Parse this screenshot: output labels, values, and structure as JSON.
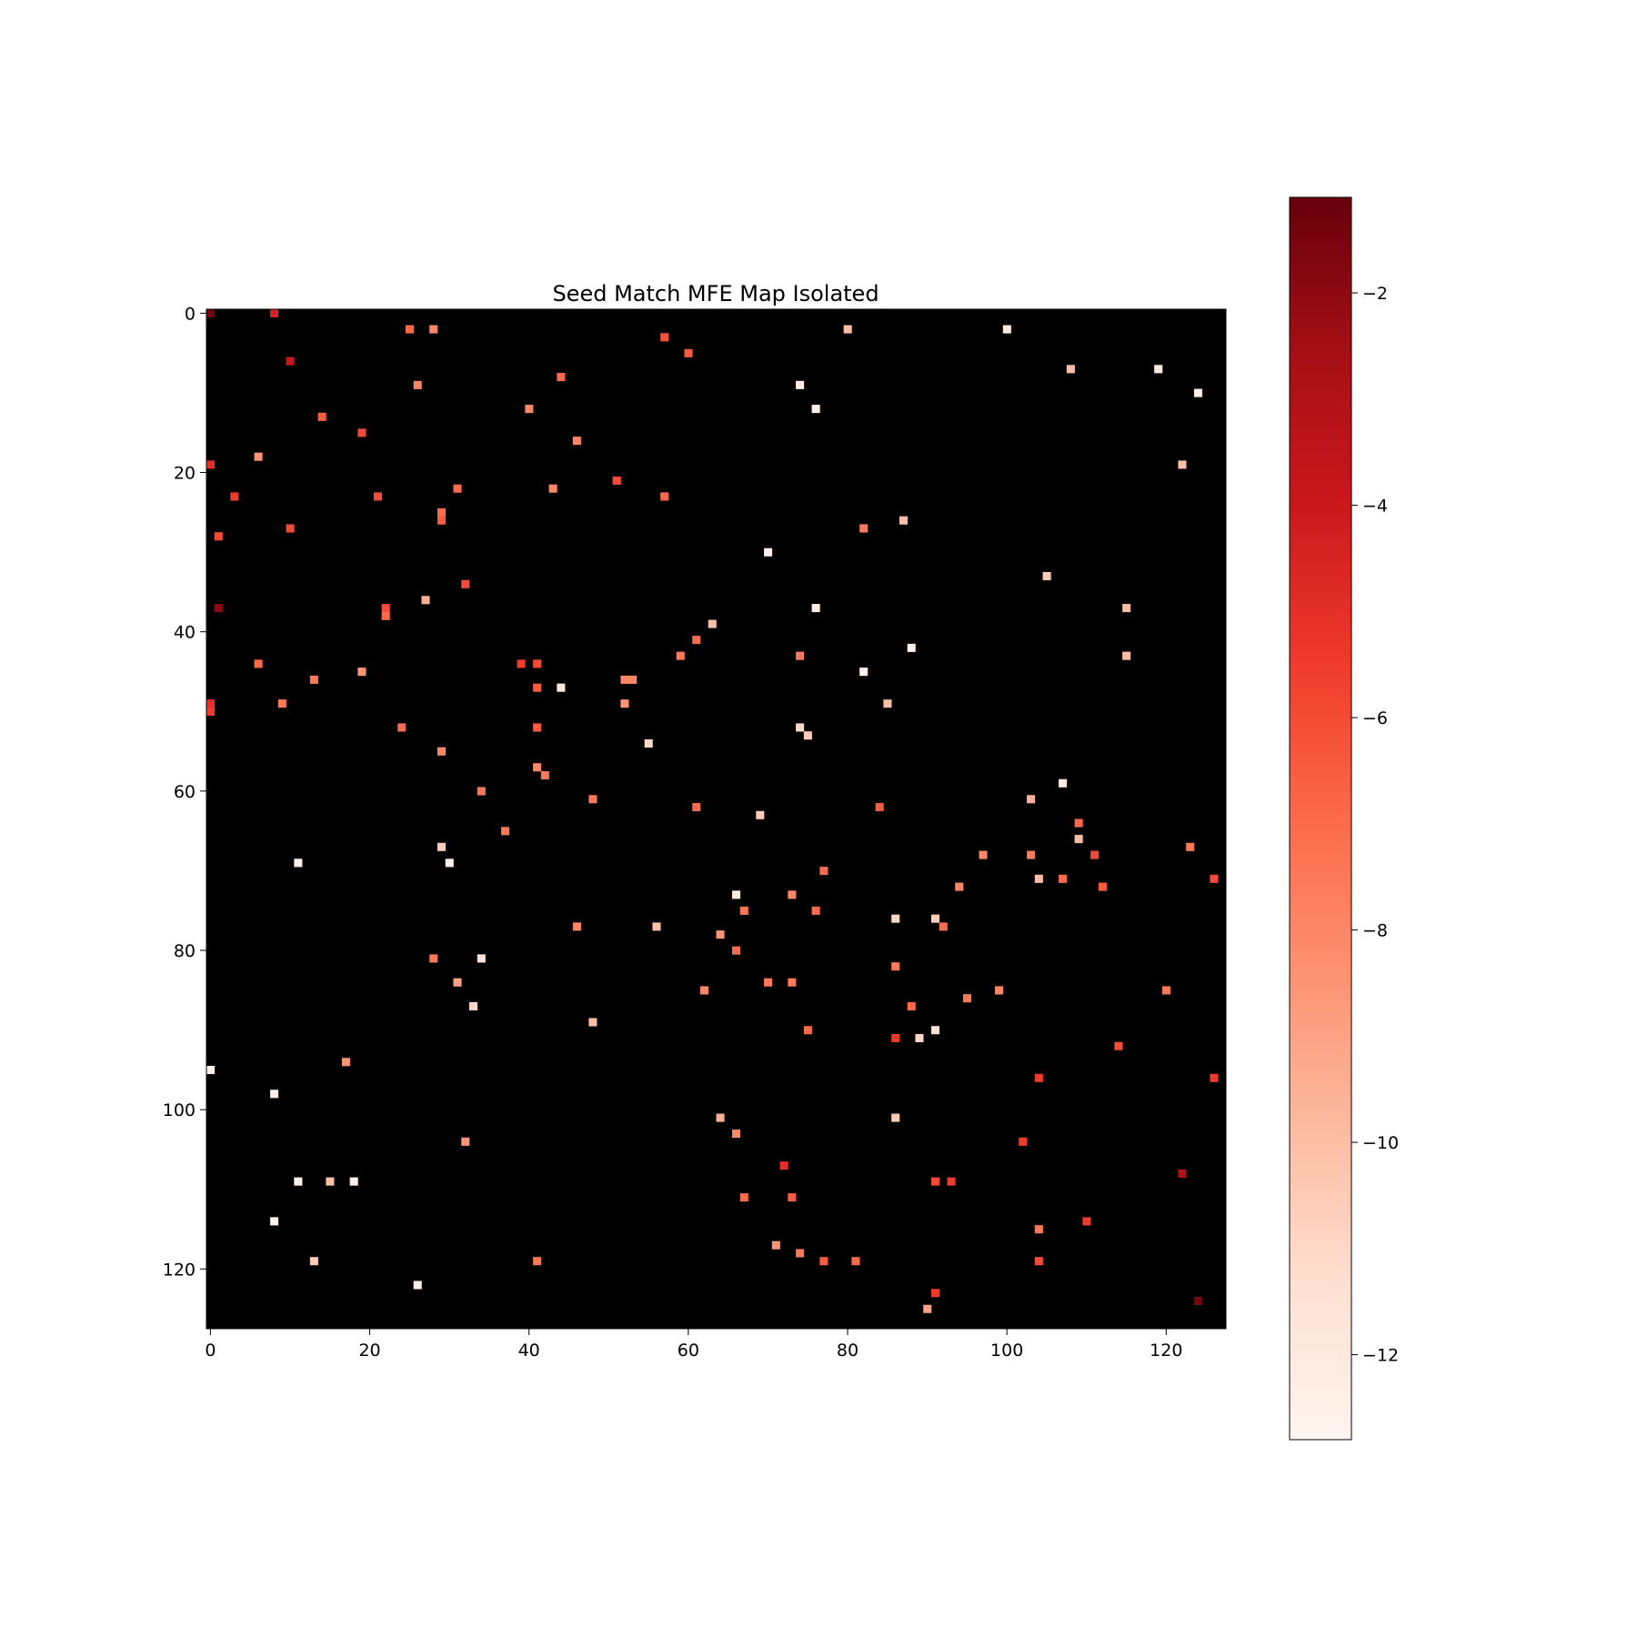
{
  "chart_data": {
    "type": "heatmap",
    "title": "Seed Match MFE Map Isolated",
    "xlabel": "",
    "ylabel": "",
    "grid_size": 128,
    "background_color": "#000000",
    "colormap": "Reds_r",
    "colormap_stops": [
      "#fff5f0",
      "#fee0d2",
      "#fcbba1",
      "#fc9272",
      "#fb6a4a",
      "#ef3b2c",
      "#cb181d",
      "#a50f15",
      "#67000d"
    ],
    "value_range": [
      -12.8,
      -1.1
    ],
    "x_ticks": [
      0,
      20,
      40,
      60,
      80,
      100,
      120
    ],
    "y_ticks": [
      0,
      20,
      40,
      60,
      80,
      100,
      120
    ],
    "colorbar_ticks": [
      -2,
      -4,
      -6,
      -8,
      -10,
      -12
    ],
    "colorbar_tick_labels": [
      "−2",
      "−4",
      "−6",
      "−8",
      "−10",
      "−12"
    ],
    "cells": [
      {
        "x": 0,
        "y": 0,
        "v": -1.3
      },
      {
        "x": 8,
        "y": 0,
        "v": -4.5
      },
      {
        "x": 25,
        "y": 2,
        "v": -7.0
      },
      {
        "x": 28,
        "y": 2,
        "v": -8.0
      },
      {
        "x": 57,
        "y": 3,
        "v": -6.2
      },
      {
        "x": 60,
        "y": 5,
        "v": -6.5
      },
      {
        "x": 80,
        "y": 2,
        "v": -10.0
      },
      {
        "x": 100,
        "y": 2,
        "v": -12.0
      },
      {
        "x": 10,
        "y": 6,
        "v": -4.0
      },
      {
        "x": 108,
        "y": 7,
        "v": -10.0
      },
      {
        "x": 119,
        "y": 7,
        "v": -12.0
      },
      {
        "x": 44,
        "y": 8,
        "v": -7.0
      },
      {
        "x": 26,
        "y": 9,
        "v": -8.0
      },
      {
        "x": 74,
        "y": 9,
        "v": -12.3
      },
      {
        "x": 124,
        "y": 10,
        "v": -12.5
      },
      {
        "x": 40,
        "y": 12,
        "v": -8.0
      },
      {
        "x": 76,
        "y": 12,
        "v": -12.3
      },
      {
        "x": 14,
        "y": 13,
        "v": -6.5
      },
      {
        "x": 19,
        "y": 15,
        "v": -6.0
      },
      {
        "x": 46,
        "y": 16,
        "v": -8.0
      },
      {
        "x": 6,
        "y": 18,
        "v": -8.5
      },
      {
        "x": 0,
        "y": 19,
        "v": -5.0
      },
      {
        "x": 122,
        "y": 19,
        "v": -10.0
      },
      {
        "x": 51,
        "y": 21,
        "v": -6.0
      },
      {
        "x": 31,
        "y": 22,
        "v": -7.0
      },
      {
        "x": 43,
        "y": 22,
        "v": -8.0
      },
      {
        "x": 3,
        "y": 23,
        "v": -5.5
      },
      {
        "x": 21,
        "y": 23,
        "v": -6.0
      },
      {
        "x": 57,
        "y": 23,
        "v": -7.0
      },
      {
        "x": 29,
        "y": 25,
        "v": -7.0
      },
      {
        "x": 29,
        "y": 26,
        "v": -6.5
      },
      {
        "x": 87,
        "y": 26,
        "v": -10.0
      },
      {
        "x": 10,
        "y": 27,
        "v": -6.0
      },
      {
        "x": 82,
        "y": 27,
        "v": -7.5
      },
      {
        "x": 1,
        "y": 28,
        "v": -6.0
      },
      {
        "x": 70,
        "y": 30,
        "v": -12.5
      },
      {
        "x": 105,
        "y": 33,
        "v": -10.5
      },
      {
        "x": 32,
        "y": 34,
        "v": -6.0
      },
      {
        "x": 27,
        "y": 36,
        "v": -9.5
      },
      {
        "x": 1,
        "y": 37,
        "v": -2.0
      },
      {
        "x": 22,
        "y": 37,
        "v": -6.0
      },
      {
        "x": 76,
        "y": 37,
        "v": -12.3
      },
      {
        "x": 115,
        "y": 37,
        "v": -10.0
      },
      {
        "x": 22,
        "y": 38,
        "v": -7.0
      },
      {
        "x": 63,
        "y": 39,
        "v": -10.0
      },
      {
        "x": 61,
        "y": 41,
        "v": -7.0
      },
      {
        "x": 88,
        "y": 42,
        "v": -12.5
      },
      {
        "x": 59,
        "y": 43,
        "v": -7.5
      },
      {
        "x": 74,
        "y": 43,
        "v": -7.5
      },
      {
        "x": 115,
        "y": 43,
        "v": -10.0
      },
      {
        "x": 6,
        "y": 44,
        "v": -7.0
      },
      {
        "x": 39,
        "y": 44,
        "v": -5.5
      },
      {
        "x": 41,
        "y": 44,
        "v": -6.0
      },
      {
        "x": 19,
        "y": 45,
        "v": -8.5
      },
      {
        "x": 82,
        "y": 45,
        "v": -12.5
      },
      {
        "x": 13,
        "y": 46,
        "v": -7.5
      },
      {
        "x": 52,
        "y": 46,
        "v": -8.0
      },
      {
        "x": 53,
        "y": 46,
        "v": -8.0
      },
      {
        "x": 41,
        "y": 47,
        "v": -6.5
      },
      {
        "x": 44,
        "y": 47,
        "v": -12.0
      },
      {
        "x": 0,
        "y": 49,
        "v": -5.0
      },
      {
        "x": 9,
        "y": 49,
        "v": -7.5
      },
      {
        "x": 52,
        "y": 49,
        "v": -8.5
      },
      {
        "x": 85,
        "y": 49,
        "v": -10.0
      },
      {
        "x": 0,
        "y": 50,
        "v": -5.5
      },
      {
        "x": 24,
        "y": 52,
        "v": -7.0
      },
      {
        "x": 41,
        "y": 52,
        "v": -6.5
      },
      {
        "x": 74,
        "y": 52,
        "v": -11.0
      },
      {
        "x": 75,
        "y": 53,
        "v": -10.5
      },
      {
        "x": 55,
        "y": 54,
        "v": -11.0
      },
      {
        "x": 29,
        "y": 55,
        "v": -8.0
      },
      {
        "x": 41,
        "y": 57,
        "v": -8.0
      },
      {
        "x": 42,
        "y": 58,
        "v": -7.5
      },
      {
        "x": 107,
        "y": 59,
        "v": -12.0
      },
      {
        "x": 34,
        "y": 60,
        "v": -7.5
      },
      {
        "x": 48,
        "y": 61,
        "v": -7.5
      },
      {
        "x": 103,
        "y": 61,
        "v": -9.5
      },
      {
        "x": 61,
        "y": 62,
        "v": -7.0
      },
      {
        "x": 84,
        "y": 62,
        "v": -6.5
      },
      {
        "x": 69,
        "y": 63,
        "v": -10.5
      },
      {
        "x": 109,
        "y": 64,
        "v": -7.0
      },
      {
        "x": 37,
        "y": 65,
        "v": -7.5
      },
      {
        "x": 109,
        "y": 66,
        "v": -10.0
      },
      {
        "x": 29,
        "y": 67,
        "v": -10.5
      },
      {
        "x": 123,
        "y": 67,
        "v": -7.5
      },
      {
        "x": 97,
        "y": 68,
        "v": -8.0
      },
      {
        "x": 103,
        "y": 68,
        "v": -7.5
      },
      {
        "x": 111,
        "y": 68,
        "v": -6.0
      },
      {
        "x": 11,
        "y": 69,
        "v": -12.5
      },
      {
        "x": 30,
        "y": 69,
        "v": -12.5
      },
      {
        "x": 77,
        "y": 70,
        "v": -7.0
      },
      {
        "x": 104,
        "y": 71,
        "v": -10.0
      },
      {
        "x": 107,
        "y": 71,
        "v": -7.0
      },
      {
        "x": 126,
        "y": 71,
        "v": -6.0
      },
      {
        "x": 94,
        "y": 72,
        "v": -8.0
      },
      {
        "x": 112,
        "y": 72,
        "v": -6.5
      },
      {
        "x": 66,
        "y": 73,
        "v": -12.0
      },
      {
        "x": 73,
        "y": 73,
        "v": -8.0
      },
      {
        "x": 67,
        "y": 75,
        "v": -7.5
      },
      {
        "x": 76,
        "y": 75,
        "v": -7.0
      },
      {
        "x": 86,
        "y": 76,
        "v": -11.0
      },
      {
        "x": 91,
        "y": 76,
        "v": -10.5
      },
      {
        "x": 46,
        "y": 77,
        "v": -8.0
      },
      {
        "x": 56,
        "y": 77,
        "v": -10.0
      },
      {
        "x": 92,
        "y": 77,
        "v": -7.0
      },
      {
        "x": 64,
        "y": 78,
        "v": -8.5
      },
      {
        "x": 66,
        "y": 80,
        "v": -7.0
      },
      {
        "x": 28,
        "y": 81,
        "v": -7.5
      },
      {
        "x": 34,
        "y": 81,
        "v": -11.5
      },
      {
        "x": 86,
        "y": 82,
        "v": -7.5
      },
      {
        "x": 31,
        "y": 84,
        "v": -9.0
      },
      {
        "x": 70,
        "y": 84,
        "v": -7.5
      },
      {
        "x": 73,
        "y": 84,
        "v": -7.5
      },
      {
        "x": 62,
        "y": 85,
        "v": -8.0
      },
      {
        "x": 99,
        "y": 85,
        "v": -8.0
      },
      {
        "x": 120,
        "y": 85,
        "v": -7.5
      },
      {
        "x": 95,
        "y": 86,
        "v": -7.5
      },
      {
        "x": 33,
        "y": 87,
        "v": -11.0
      },
      {
        "x": 88,
        "y": 87,
        "v": -7.0
      },
      {
        "x": 48,
        "y": 89,
        "v": -10.0
      },
      {
        "x": 75,
        "y": 90,
        "v": -7.0
      },
      {
        "x": 91,
        "y": 90,
        "v": -11.5
      },
      {
        "x": 86,
        "y": 91,
        "v": -5.5
      },
      {
        "x": 89,
        "y": 91,
        "v": -11.0
      },
      {
        "x": 114,
        "y": 92,
        "v": -6.0
      },
      {
        "x": 17,
        "y": 94,
        "v": -8.5
      },
      {
        "x": 0,
        "y": 95,
        "v": -12.5
      },
      {
        "x": 104,
        "y": 96,
        "v": -5.5
      },
      {
        "x": 126,
        "y": 96,
        "v": -5.5
      },
      {
        "x": 8,
        "y": 98,
        "v": -12.5
      },
      {
        "x": 64,
        "y": 101,
        "v": -9.5
      },
      {
        "x": 86,
        "y": 101,
        "v": -10.5
      },
      {
        "x": 66,
        "y": 103,
        "v": -8.0
      },
      {
        "x": 32,
        "y": 104,
        "v": -8.5
      },
      {
        "x": 102,
        "y": 104,
        "v": -5.5
      },
      {
        "x": 72,
        "y": 107,
        "v": -5.0
      },
      {
        "x": 122,
        "y": 108,
        "v": -3.0
      },
      {
        "x": 11,
        "y": 109,
        "v": -12.5
      },
      {
        "x": 15,
        "y": 109,
        "v": -10.0
      },
      {
        "x": 18,
        "y": 109,
        "v": -12.5
      },
      {
        "x": 91,
        "y": 109,
        "v": -6.0
      },
      {
        "x": 93,
        "y": 109,
        "v": -5.5
      },
      {
        "x": 67,
        "y": 111,
        "v": -7.0
      },
      {
        "x": 73,
        "y": 111,
        "v": -6.5
      },
      {
        "x": 8,
        "y": 114,
        "v": -12.5
      },
      {
        "x": 110,
        "y": 114,
        "v": -5.5
      },
      {
        "x": 104,
        "y": 115,
        "v": -7.5
      },
      {
        "x": 71,
        "y": 117,
        "v": -8.5
      },
      {
        "x": 74,
        "y": 118,
        "v": -7.5
      },
      {
        "x": 13,
        "y": 119,
        "v": -10.5
      },
      {
        "x": 41,
        "y": 119,
        "v": -7.5
      },
      {
        "x": 77,
        "y": 119,
        "v": -6.5
      },
      {
        "x": 81,
        "y": 119,
        "v": -7.0
      },
      {
        "x": 104,
        "y": 119,
        "v": -6.0
      },
      {
        "x": 26,
        "y": 122,
        "v": -12.5
      },
      {
        "x": 91,
        "y": 123,
        "v": -5.5
      },
      {
        "x": 124,
        "y": 124,
        "v": -1.5
      },
      {
        "x": 90,
        "y": 125,
        "v": -9.0
      }
    ]
  }
}
